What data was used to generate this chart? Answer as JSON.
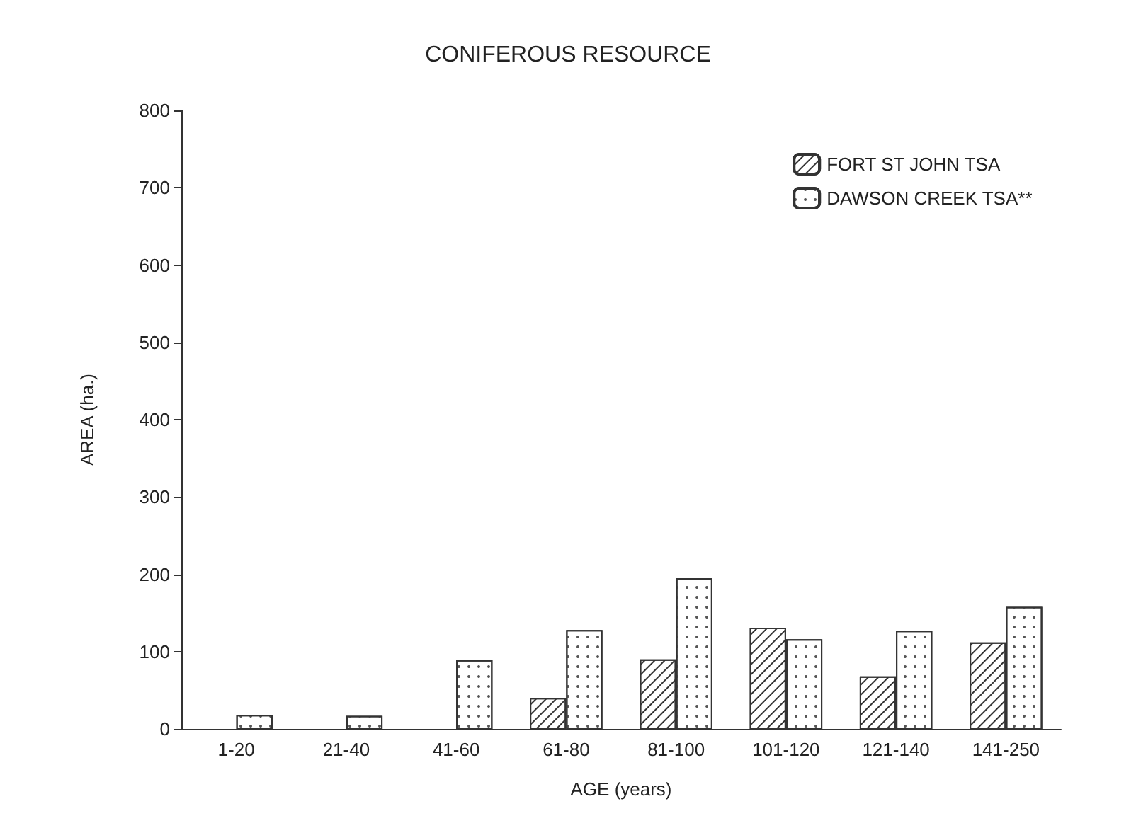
{
  "chart_data": {
    "type": "bar",
    "title": "CONIFEROUS RESOURCE",
    "xlabel": "AGE (years)",
    "ylabel": "AREA (ha.)",
    "categories": [
      "1-20",
      "21-40",
      "41-60",
      "61-80",
      "81-100",
      "101-120",
      "121-140",
      "141-250"
    ],
    "series": [
      {
        "name": "FORT ST JOHN TSA",
        "color": "#ffffff",
        "values": [
          null,
          null,
          null,
          40,
          90,
          131,
          68,
          112
        ]
      },
      {
        "name": "DAWSON CREEK TSA**",
        "color": "#ffffff",
        "values": [
          18,
          17,
          89,
          128,
          195,
          116,
          127,
          158
        ]
      }
    ],
    "ylim": [
      0,
      800
    ],
    "yticks": [
      0,
      100,
      200,
      300,
      400,
      500,
      600,
      700,
      800
    ],
    "grid": false,
    "legend": "top right"
  }
}
